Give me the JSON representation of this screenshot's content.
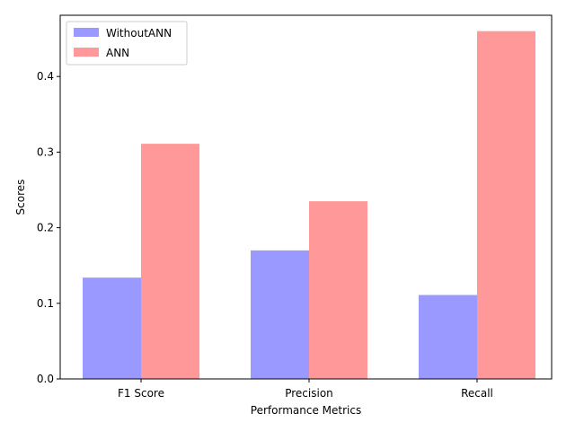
{
  "chart_data": {
    "type": "bar",
    "title": "",
    "xlabel": "Performance Metrics",
    "ylabel": "Scores",
    "categories": [
      "F1 Score",
      "Precision",
      "Recall"
    ],
    "series": [
      {
        "name": "WithoutANN",
        "color": "#9999ff",
        "values": [
          0.134,
          0.17,
          0.111
        ]
      },
      {
        "name": "ANN",
        "color": "#ff9999",
        "values": [
          0.311,
          0.235,
          0.46
        ]
      }
    ],
    "ylim": [
      0,
      0.481
    ],
    "yticks": [
      0.0,
      0.1,
      0.2,
      0.3,
      0.4
    ],
    "ytick_labels": [
      "0.0",
      "0.1",
      "0.2",
      "0.3",
      "0.4"
    ],
    "grid": false,
    "legend": "upper left"
  }
}
